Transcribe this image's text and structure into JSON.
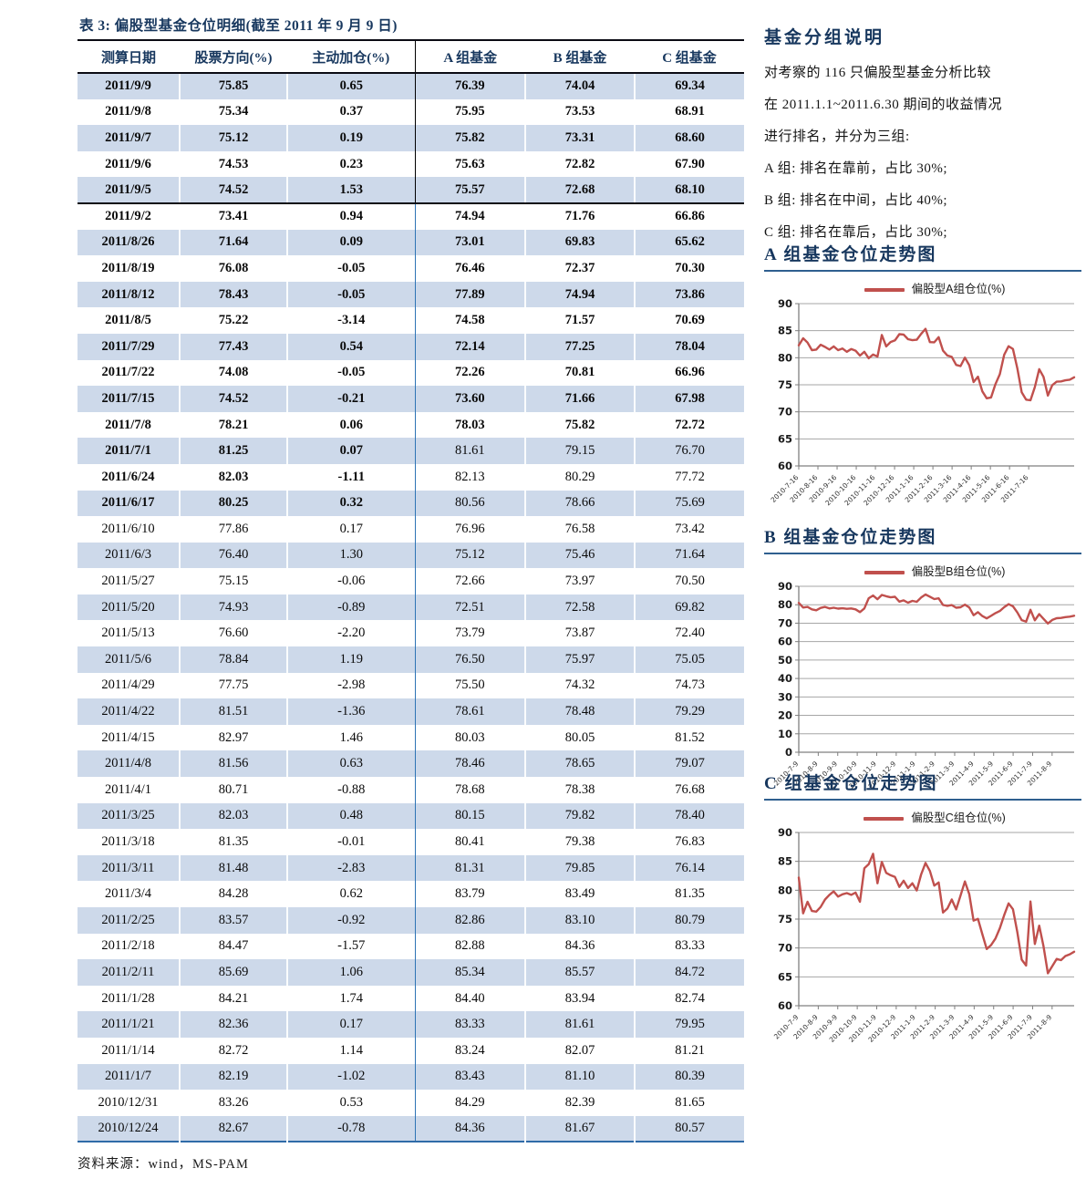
{
  "colors": {
    "accent": "#17375e",
    "line_red": "#c0504d",
    "row_shade": "#cdd9ea",
    "divider_blue": "#2e74b5",
    "grid": "#a6a6a6",
    "axis": "#7f7f7f"
  },
  "table": {
    "title": "表 3:  偏股型基金仓位明细(截至 2011 年 9 月 9 日)",
    "columns": [
      "测算日期",
      "股票方向(%)",
      "主动加仓(%)",
      "A 组基金",
      "B 组基金",
      "C 组基金"
    ],
    "rows": [
      {
        "d": "2011/9/9",
        "v": [
          "75.85",
          "0.65",
          "76.39",
          "74.04",
          "69.34"
        ],
        "b": "all"
      },
      {
        "d": "2011/9/8",
        "v": [
          "75.34",
          "0.37",
          "75.95",
          "73.53",
          "68.91"
        ],
        "b": "all"
      },
      {
        "d": "2011/9/7",
        "v": [
          "75.12",
          "0.19",
          "75.82",
          "73.31",
          "68.60"
        ],
        "b": "all"
      },
      {
        "d": "2011/9/6",
        "v": [
          "74.53",
          "0.23",
          "75.63",
          "72.82",
          "67.90"
        ],
        "b": "all"
      },
      {
        "d": "2011/9/5",
        "v": [
          "74.52",
          "1.53",
          "75.57",
          "72.68",
          "68.10"
        ],
        "b": "all"
      },
      {
        "d": "2011/9/2",
        "v": [
          "73.41",
          "0.94",
          "74.94",
          "71.76",
          "66.86"
        ],
        "b": "all"
      },
      {
        "d": "2011/8/26",
        "v": [
          "71.64",
          "0.09",
          "73.01",
          "69.83",
          "65.62"
        ],
        "b": "all"
      },
      {
        "d": "2011/8/19",
        "v": [
          "76.08",
          "-0.05",
          "76.46",
          "72.37",
          "70.30"
        ],
        "b": "all"
      },
      {
        "d": "2011/8/12",
        "v": [
          "78.43",
          "-0.05",
          "77.89",
          "74.94",
          "73.86"
        ],
        "b": "all"
      },
      {
        "d": "2011/8/5",
        "v": [
          "75.22",
          "-3.14",
          "74.58",
          "71.57",
          "70.69"
        ],
        "b": "all"
      },
      {
        "d": "2011/7/29",
        "v": [
          "77.43",
          "0.54",
          "72.14",
          "77.25",
          "78.04"
        ],
        "b": "all"
      },
      {
        "d": "2011/7/22",
        "v": [
          "74.08",
          "-0.05",
          "72.26",
          "70.81",
          "66.96"
        ],
        "b": "all"
      },
      {
        "d": "2011/7/15",
        "v": [
          "74.52",
          "-0.21",
          "73.60",
          "71.66",
          "67.98"
        ],
        "b": "all"
      },
      {
        "d": "2011/7/8",
        "v": [
          "78.21",
          "0.06",
          "78.03",
          "75.82",
          "72.72"
        ],
        "b": "all"
      },
      {
        "d": "2011/7/1",
        "v": [
          "81.25",
          "0.07",
          "81.61",
          "79.15",
          "76.70"
        ],
        "b": "left"
      },
      {
        "d": "2011/6/24",
        "v": [
          "82.03",
          "-1.11",
          "82.13",
          "80.29",
          "77.72"
        ],
        "b": "left"
      },
      {
        "d": "2011/6/17",
        "v": [
          "80.25",
          "0.32",
          "80.56",
          "78.66",
          "75.69"
        ],
        "b": "left"
      },
      {
        "d": "2011/6/10",
        "v": [
          "77.86",
          "0.17",
          "76.96",
          "76.58",
          "73.42"
        ],
        "b": "none"
      },
      {
        "d": "2011/6/3",
        "v": [
          "76.40",
          "1.30",
          "75.12",
          "75.46",
          "71.64"
        ],
        "b": "none"
      },
      {
        "d": "2011/5/27",
        "v": [
          "75.15",
          "-0.06",
          "72.66",
          "73.97",
          "70.50"
        ],
        "b": "none"
      },
      {
        "d": "2011/5/20",
        "v": [
          "74.93",
          "-0.89",
          "72.51",
          "72.58",
          "69.82"
        ],
        "b": "none"
      },
      {
        "d": "2011/5/13",
        "v": [
          "76.60",
          "-2.20",
          "73.79",
          "73.87",
          "72.40"
        ],
        "b": "none"
      },
      {
        "d": "2011/5/6",
        "v": [
          "78.84",
          "1.19",
          "76.50",
          "75.97",
          "75.05"
        ],
        "b": "none"
      },
      {
        "d": "2011/4/29",
        "v": [
          "77.75",
          "-2.98",
          "75.50",
          "74.32",
          "74.73"
        ],
        "b": "none"
      },
      {
        "d": "2011/4/22",
        "v": [
          "81.51",
          "-1.36",
          "78.61",
          "78.48",
          "79.29"
        ],
        "b": "none"
      },
      {
        "d": "2011/4/15",
        "v": [
          "82.97",
          "1.46",
          "80.03",
          "80.05",
          "81.52"
        ],
        "b": "none"
      },
      {
        "d": "2011/4/8",
        "v": [
          "81.56",
          "0.63",
          "78.46",
          "78.65",
          "79.07"
        ],
        "b": "none"
      },
      {
        "d": "2011/4/1",
        "v": [
          "80.71",
          "-0.88",
          "78.68",
          "78.38",
          "76.68"
        ],
        "b": "none"
      },
      {
        "d": "2011/3/25",
        "v": [
          "82.03",
          "0.48",
          "80.15",
          "79.82",
          "78.40"
        ],
        "b": "none"
      },
      {
        "d": "2011/3/18",
        "v": [
          "81.35",
          "-0.01",
          "80.41",
          "79.38",
          "76.83"
        ],
        "b": "none"
      },
      {
        "d": "2011/3/11",
        "v": [
          "81.48",
          "-2.83",
          "81.31",
          "79.85",
          "76.14"
        ],
        "b": "none"
      },
      {
        "d": "2011/3/4",
        "v": [
          "84.28",
          "0.62",
          "83.79",
          "83.49",
          "81.35"
        ],
        "b": "none"
      },
      {
        "d": "2011/2/25",
        "v": [
          "83.57",
          "-0.92",
          "82.86",
          "83.10",
          "80.79"
        ],
        "b": "none"
      },
      {
        "d": "2011/2/18",
        "v": [
          "84.47",
          "-1.57",
          "82.88",
          "84.36",
          "83.33"
        ],
        "b": "none"
      },
      {
        "d": "2011/2/11",
        "v": [
          "85.69",
          "1.06",
          "85.34",
          "85.57",
          "84.72"
        ],
        "b": "none"
      },
      {
        "d": "2011/1/28",
        "v": [
          "84.21",
          "1.74",
          "84.40",
          "83.94",
          "82.74"
        ],
        "b": "none"
      },
      {
        "d": "2011/1/21",
        "v": [
          "82.36",
          "0.17",
          "83.33",
          "81.61",
          "79.95"
        ],
        "b": "none"
      },
      {
        "d": "2011/1/14",
        "v": [
          "82.72",
          "1.14",
          "83.24",
          "82.07",
          "81.21"
        ],
        "b": "none"
      },
      {
        "d": "2011/1/7",
        "v": [
          "82.19",
          "-1.02",
          "83.43",
          "81.10",
          "80.39"
        ],
        "b": "none"
      },
      {
        "d": "2010/12/31",
        "v": [
          "83.26",
          "0.53",
          "84.29",
          "82.39",
          "81.65"
        ],
        "b": "none"
      },
      {
        "d": "2010/12/24",
        "v": [
          "82.67",
          "-0.78",
          "84.36",
          "81.67",
          "80.57"
        ],
        "b": "none"
      }
    ],
    "source": "资料来源：wind，MS-PAM"
  },
  "sidebar": {
    "heading": "基金分组说明",
    "lines": [
      "对考察的 116 只偏股型基金分析比较",
      "在 2011.1.1~2011.6.30 期间的收益情况",
      "进行排名，并分为三组:",
      "A 组: 排名在靠前，占比 30%;",
      "B 组: 排名在中间，占比 40%;",
      "C 组: 排名在靠后，占比 30%;"
    ]
  },
  "chart_data": [
    {
      "type": "line",
      "title": "A 组基金仓位走势图",
      "legend": "偏股型A组仓位(%)",
      "ylim": [
        60,
        90
      ],
      "ystep": 5,
      "grid": true,
      "legend_position": "top",
      "line_color": "#c0504d",
      "x_tick_labels": [
        "2010-7-16",
        "2010-8-16",
        "2010-9-16",
        "2010-10-16",
        "2010-11-16",
        "2010-12-16",
        "2011-1-16",
        "2011-2-16",
        "2011-3-16",
        "2011-4-16",
        "2011-5-16",
        "2011-6-16",
        "2011-7-16"
      ],
      "values": [
        82.3,
        83.6,
        82.8,
        81.4,
        81.5,
        82.4,
        82.0,
        81.5,
        82.1,
        81.4,
        81.7,
        81.1,
        81.6,
        81.3,
        80.4,
        81.1,
        79.9,
        80.6,
        80.2,
        84.2,
        82.1,
        82.9,
        83.2,
        84.36,
        84.29,
        83.43,
        83.24,
        83.33,
        84.4,
        85.34,
        82.88,
        82.86,
        83.79,
        81.31,
        80.41,
        80.15,
        78.68,
        78.46,
        80.03,
        78.61,
        75.5,
        76.5,
        73.79,
        72.51,
        72.66,
        75.12,
        76.96,
        80.56,
        82.13,
        81.61,
        78.03,
        73.6,
        72.26,
        72.14,
        74.58,
        77.89,
        76.46,
        73.01,
        74.94,
        75.57,
        75.63,
        75.82,
        75.95,
        76.39
      ]
    },
    {
      "type": "line",
      "title": "B 组基金仓位走势图",
      "legend": "偏股型B组仓位(%)",
      "ylim": [
        0,
        90
      ],
      "ystep": 10,
      "grid": true,
      "legend_position": "top",
      "line_color": "#c0504d",
      "x_tick_labels": [
        "2010-7-9",
        "2010-8-9",
        "2010-9-9",
        "2010-10-9",
        "2010-11-9",
        "2010-12-9",
        "2011-1-9",
        "2011-2-9",
        "2011-3-9",
        "2011-4-9",
        "2011-5-9",
        "2011-6-9",
        "2011-7-9",
        "2011-8-9"
      ],
      "values": [
        81.0,
        78.5,
        78.8,
        77.5,
        77.0,
        78.3,
        78.8,
        78.0,
        78.4,
        77.9,
        78.1,
        77.8,
        78.0,
        77.5,
        76.0,
        78.0,
        83.5,
        85.0,
        83.0,
        85.3,
        84.6,
        84.0,
        84.3,
        81.67,
        82.39,
        81.1,
        82.07,
        81.61,
        83.94,
        85.57,
        84.36,
        83.1,
        83.49,
        79.85,
        79.38,
        79.82,
        78.38,
        78.65,
        80.05,
        78.48,
        74.32,
        75.97,
        73.87,
        72.58,
        73.97,
        75.46,
        76.58,
        78.66,
        80.29,
        79.15,
        75.82,
        71.66,
        70.81,
        77.25,
        71.57,
        74.94,
        72.37,
        69.83,
        71.76,
        72.68,
        72.82,
        73.31,
        73.53,
        74.04
      ]
    },
    {
      "type": "line",
      "title": "C 组基金仓位走势图",
      "legend": "偏股型C组仓位(%)",
      "ylim": [
        60,
        90
      ],
      "ystep": 5,
      "grid": true,
      "legend_position": "top",
      "line_color": "#c0504d",
      "x_tick_labels": [
        "2010-7-9",
        "2010-8-9",
        "2010-9-9",
        "2010-10-9",
        "2010-11-9",
        "2010-12-9",
        "2011-1-9",
        "2011-2-9",
        "2011-3-9",
        "2011-4-9",
        "2011-5-9",
        "2011-6-9",
        "2011-7-9",
        "2011-8-9"
      ],
      "values": [
        82.2,
        76.0,
        78.0,
        76.4,
        76.3,
        77.1,
        78.4,
        79.2,
        79.8,
        78.9,
        79.3,
        79.5,
        79.2,
        79.6,
        78.0,
        83.8,
        84.5,
        86.3,
        81.2,
        84.9,
        83.0,
        82.6,
        82.3,
        80.57,
        81.65,
        80.39,
        81.21,
        79.95,
        82.74,
        84.72,
        83.33,
        80.79,
        81.35,
        76.14,
        76.83,
        78.4,
        76.68,
        79.07,
        81.52,
        79.29,
        74.73,
        75.05,
        72.4,
        69.82,
        70.5,
        71.64,
        73.42,
        75.69,
        77.72,
        76.7,
        72.72,
        67.98,
        66.96,
        78.04,
        70.69,
        73.86,
        70.3,
        65.62,
        66.86,
        68.1,
        67.9,
        68.6,
        68.91,
        69.34
      ]
    }
  ]
}
